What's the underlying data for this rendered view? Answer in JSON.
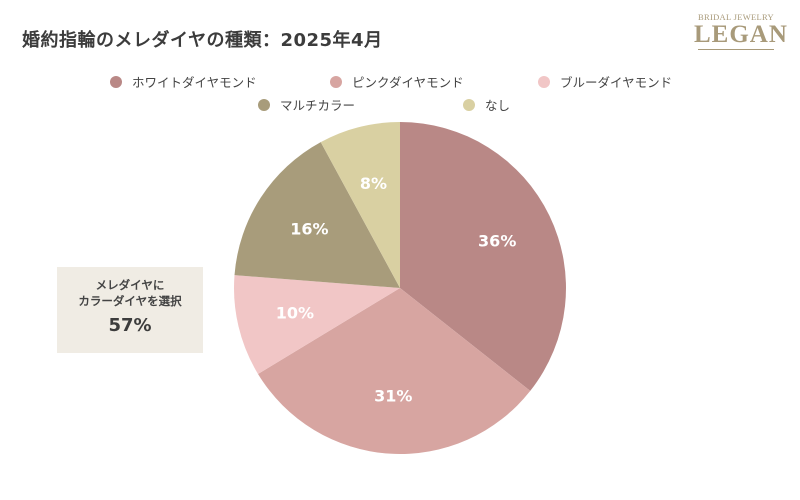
{
  "title": "婚約指輪のメレダイヤの種類：2025年4月",
  "logo": {
    "small": "BRIDAL JEWELRY",
    "big": "LEGAN"
  },
  "callout": {
    "line1": "メレダイヤに",
    "line2": "カラーダイヤを選択",
    "value": "57%"
  },
  "chart_data": {
    "type": "pie",
    "title": "婚約指輪のメレダイヤの種類：2025年4月",
    "legend_position": "top",
    "categories": [
      "ホワイトダイヤモンド",
      "ピンクダイヤモンド",
      "ブルーダイヤモンド",
      "マルチカラー",
      "なし"
    ],
    "values": [
      36,
      31,
      10,
      16,
      8
    ],
    "labels": [
      "36%",
      "31%",
      "10%",
      "16%",
      "8%"
    ],
    "colors": [
      "#b98886",
      "#d7a5a1",
      "#f1c6c6",
      "#a89c7b",
      "#d9d0a2"
    ]
  }
}
